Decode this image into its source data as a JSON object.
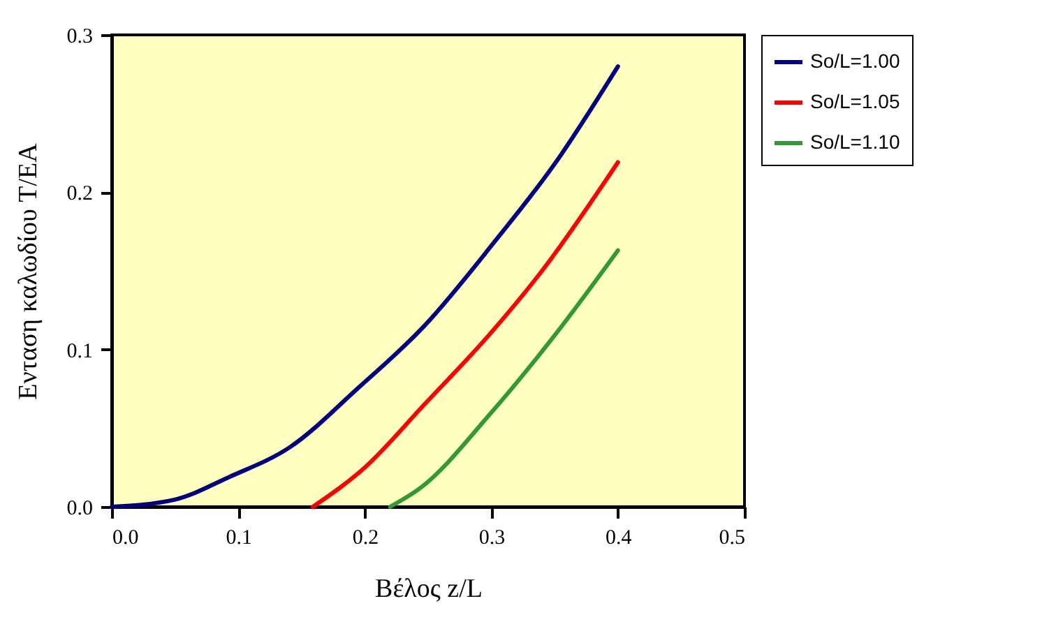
{
  "chart_data": {
    "type": "line",
    "xlabel": "Βέλος z/L",
    "ylabel": "Ενταση καλωδίου T/EA",
    "xlim": [
      0,
      0.5
    ],
    "xticks": [
      {
        "value": 0,
        "label": "0.0"
      },
      0.1,
      0.2,
      0.3,
      0.4,
      0.5
    ],
    "ylim": [
      0,
      0.3
    ],
    "yticks": [
      {
        "value": 0,
        "label": "0.0"
      },
      0.1,
      0.2,
      0.3
    ],
    "grid": false,
    "legend": "right",
    "marker": "none",
    "line_style": "solid",
    "series": [
      {
        "name": "So/L=1.00",
        "color": "#000080",
        "x": [
          0,
          0.049,
          0.093,
          0.141,
          0.194,
          0.247,
          0.302,
          0.35,
          0.4
        ],
        "values": [
          0,
          0.0044,
          0.019,
          0.038,
          0.075,
          0.115,
          0.168,
          0.218,
          0.28
        ]
      },
      {
        "name": "So/L=1.05",
        "color": "#ff0000",
        "x": [
          0.159,
          0.2,
          0.247,
          0.299,
          0.34,
          0.4
        ],
        "values": [
          0,
          0.025,
          0.065,
          0.11,
          0.15,
          0.219
        ]
      },
      {
        "name": "So/L=1.10",
        "color": "#339933",
        "x": [
          0.22,
          0.244,
          0.299,
          0.35,
          0.4
        ],
        "values": [
          0,
          0.012,
          0.059,
          0.109,
          0.163
        ]
      }
    ]
  }
}
